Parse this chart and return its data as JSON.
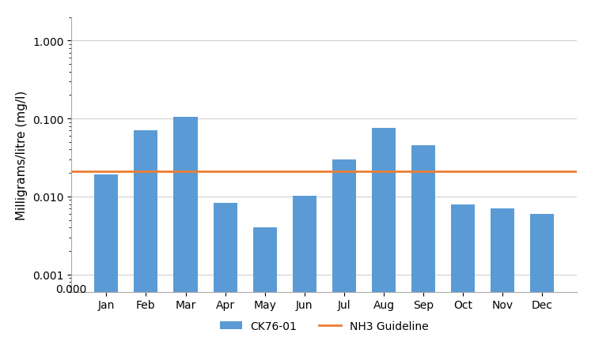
{
  "categories": [
    "Jan",
    "Feb",
    "Mar",
    "Apr",
    "May",
    "Jun",
    "Jul",
    "Aug",
    "Sep",
    "Oct",
    "Nov",
    "Dec"
  ],
  "values": [
    0.019,
    0.07,
    0.105,
    0.0082,
    0.004,
    0.0102,
    0.03,
    0.075,
    0.045,
    0.008,
    0.007,
    0.006
  ],
  "bar_color": "#5b9bd5",
  "nh3_guideline": 0.021,
  "nh3_color": "#ed7d31",
  "ylabel": "Milligrams/litre (mg/l)",
  "yticks": [
    0.001,
    0.01,
    0.1,
    1.0
  ],
  "ytick_labels": [
    "0.001",
    "0.010",
    "0.100",
    "1.000"
  ],
  "legend_bar_label": "CK76-01",
  "legend_line_label": "NH3 Guideline",
  "background_color": "#ffffff",
  "figure_background": "#ffffff"
}
